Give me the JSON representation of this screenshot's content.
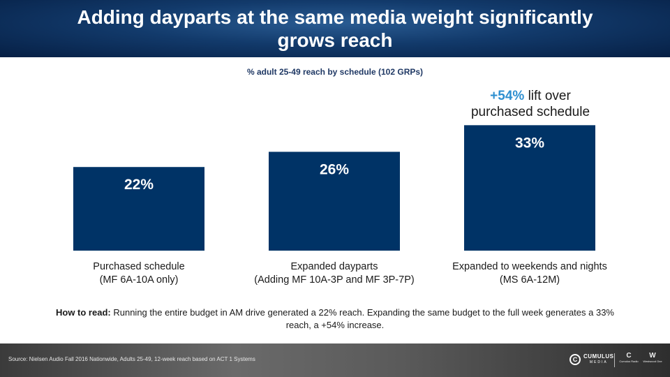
{
  "header": {
    "title": "Adding dayparts at the same media weight significantly grows reach"
  },
  "chart_data": {
    "type": "bar",
    "title": "% adult 25-49 reach by schedule (102 GRPs)",
    "categories": [
      [
        "Purchased schedule",
        "(MF 6A-10A only)"
      ],
      [
        "Expanded dayparts",
        "(Adding MF 10A-3P and MF 3P-7P)"
      ],
      [
        "Expanded to weekends and nights",
        "(MS 6A-12M)"
      ]
    ],
    "values": [
      22,
      26,
      33
    ],
    "data_labels": [
      "22%",
      "26%",
      "33%"
    ],
    "ylim": [
      0,
      36
    ],
    "bar_color": "#003366",
    "label_color": "#ffffff",
    "annotation": {
      "highlight": "+54%",
      "text_line1": " lift over",
      "text_line2": "purchased schedule",
      "highlight_color": "#2e8fd0"
    }
  },
  "how_to_read": {
    "label": "How to read:",
    "text": " Running the entire budget in AM drive generated a 22% reach. Expanding the same budget to the full week generates a 33% reach, a +54% increase."
  },
  "footer": {
    "source": "Source: Nielsen Audio Fall 2016 Nationwide, Adults 25-49, 12-week reach based on ACT 1 Systems",
    "logo_main": "CUMULUS",
    "logo_main_sub": "MEDIA",
    "logo_main_mark": "C",
    "logo_2_mark": "C",
    "logo_2_text": "Cumulus Radio",
    "logo_3_mark": "W",
    "logo_3_text": "Westwood One"
  }
}
